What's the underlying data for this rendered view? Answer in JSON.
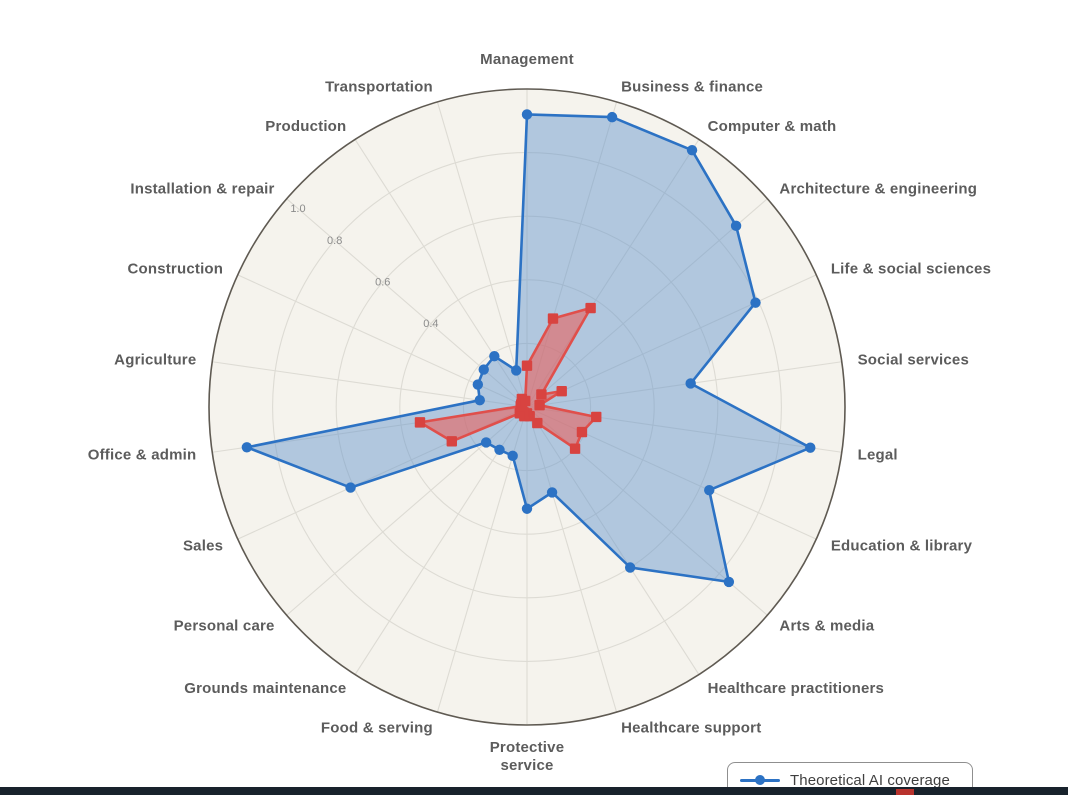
{
  "chart_data": {
    "type": "radar",
    "title": "",
    "categories": [
      "Management",
      "Business & finance",
      "Computer & math",
      "Architecture & engineering",
      "Life & social sciences",
      "Social services",
      "Legal",
      "Education & library",
      "Arts & media",
      "Healthcare practitioners",
      "Healthcare support",
      "Protective service",
      "Food & serving",
      "Grounds maintenance",
      "Personal care",
      "Sales",
      "Office & admin",
      "Agriculture",
      "Construction",
      "Installation & repair",
      "Production",
      "Transportation"
    ],
    "series": [
      {
        "name": "Theoretical AI coverage",
        "marker": "circle",
        "color": "#2c72c4",
        "fill": "rgba(96,146,205,0.45)",
        "values": [
          0.92,
          0.95,
          0.96,
          0.87,
          0.79,
          0.52,
          0.9,
          0.63,
          0.84,
          0.6,
          0.28,
          0.32,
          0.16,
          0.16,
          0.17,
          0.61,
          0.89,
          0.15,
          0.17,
          0.18,
          0.19,
          0.12
        ]
      },
      {
        "name": "",
        "marker": "square",
        "color": "#d84340",
        "line_color": "#e04f4b",
        "fill": "rgba(235,95,90,0.58)",
        "values": [
          0.13,
          0.29,
          0.37,
          0.06,
          0.12,
          0.04,
          0.22,
          0.19,
          0.2,
          0.06,
          0.03,
          0.02,
          0.03,
          0.02,
          0.03,
          0.26,
          0.34,
          0.02,
          0.02,
          0.02,
          0.03,
          0.02
        ]
      }
    ],
    "radial_axis": {
      "range": [
        0,
        1.0
      ],
      "rings": [
        0.2,
        0.4,
        0.6,
        0.8,
        1.0
      ],
      "ticks": [
        0.4,
        0.6,
        0.8,
        1.0
      ],
      "tick_labels": [
        "0.4",
        "0.6",
        "0.8",
        "1.0"
      ],
      "tick_angle_deg": 139.1
    },
    "grid": true,
    "legend_position": "bottom-right"
  },
  "legend": {
    "entry1_label": "Theoretical AI coverage"
  },
  "colors": {
    "chart_background": "#f5f3ed",
    "grid_line": "#dddbd4",
    "outer_ring": "#5f5a52",
    "category_text": "#5c5c5c",
    "tick_text": "#8b8b8b",
    "blue": "#2c72c4",
    "red": "#d84340",
    "bottom_bar": "#18222c"
  }
}
